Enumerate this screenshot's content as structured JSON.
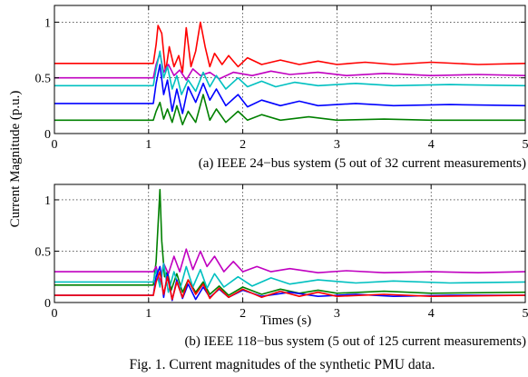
{
  "figure": {
    "ylabel": "Current Magnitude (p.u.)",
    "caption": "Fig. 1.  Current magnitudes of the synthetic PMU data."
  },
  "chart_data": [
    {
      "type": "line",
      "subtitle": "(a) IEEE 24−bus system (5 out of 32 current measurements)",
      "xlabel": "",
      "xlim": [
        0,
        5
      ],
      "ylim": [
        0,
        1.15
      ],
      "xticks": [
        "0",
        "1",
        "2",
        "3",
        "4",
        "5"
      ],
      "yticks": [
        {
          "v": 0,
          "t": "0"
        },
        {
          "v": 0.5,
          "t": "0.5"
        },
        {
          "v": 1,
          "t": "1"
        }
      ],
      "grid": true,
      "series": [
        {
          "color": "#ff0000",
          "points": [
            [
              0,
              0.63
            ],
            [
              1.05,
              0.63
            ],
            [
              1.08,
              0.8
            ],
            [
              1.1,
              0.97
            ],
            [
              1.14,
              0.9
            ],
            [
              1.18,
              0.55
            ],
            [
              1.22,
              0.78
            ],
            [
              1.27,
              0.6
            ],
            [
              1.32,
              0.7
            ],
            [
              1.36,
              0.55
            ],
            [
              1.4,
              0.95
            ],
            [
              1.45,
              0.6
            ],
            [
              1.5,
              0.74
            ],
            [
              1.55,
              1.0
            ],
            [
              1.6,
              0.78
            ],
            [
              1.65,
              0.6
            ],
            [
              1.7,
              0.72
            ],
            [
              1.78,
              0.62
            ],
            [
              1.85,
              0.7
            ],
            [
              1.95,
              0.6
            ],
            [
              2.05,
              0.68
            ],
            [
              2.2,
              0.62
            ],
            [
              2.4,
              0.66
            ],
            [
              2.6,
              0.62
            ],
            [
              2.8,
              0.65
            ],
            [
              3.0,
              0.62
            ],
            [
              3.3,
              0.64
            ],
            [
              3.6,
              0.62
            ],
            [
              4.0,
              0.64
            ],
            [
              4.5,
              0.62
            ],
            [
              5,
              0.63
            ]
          ]
        },
        {
          "color": "#c000c0",
          "points": [
            [
              0,
              0.5
            ],
            [
              1.05,
              0.5
            ],
            [
              1.08,
              0.62
            ],
            [
              1.12,
              0.72
            ],
            [
              1.16,
              0.55
            ],
            [
              1.21,
              0.62
            ],
            [
              1.27,
              0.52
            ],
            [
              1.33,
              0.57
            ],
            [
              1.4,
              0.48
            ],
            [
              1.47,
              0.58
            ],
            [
              1.55,
              0.52
            ],
            [
              1.65,
              0.55
            ],
            [
              1.75,
              0.49
            ],
            [
              1.9,
              0.55
            ],
            [
              2.1,
              0.52
            ],
            [
              2.3,
              0.56
            ],
            [
              2.5,
              0.53
            ],
            [
              2.8,
              0.55
            ],
            [
              3.1,
              0.52
            ],
            [
              3.5,
              0.54
            ],
            [
              4.0,
              0.52
            ],
            [
              4.5,
              0.53
            ],
            [
              5,
              0.52
            ]
          ]
        },
        {
          "color": "#00c0c0",
          "points": [
            [
              0,
              0.43
            ],
            [
              1.05,
              0.43
            ],
            [
              1.08,
              0.58
            ],
            [
              1.12,
              0.74
            ],
            [
              1.16,
              0.5
            ],
            [
              1.2,
              0.6
            ],
            [
              1.25,
              0.4
            ],
            [
              1.3,
              0.52
            ],
            [
              1.35,
              0.35
            ],
            [
              1.42,
              0.48
            ],
            [
              1.5,
              0.38
            ],
            [
              1.58,
              0.55
            ],
            [
              1.65,
              0.42
            ],
            [
              1.72,
              0.52
            ],
            [
              1.82,
              0.4
            ],
            [
              1.95,
              0.5
            ],
            [
              2.05,
              0.42
            ],
            [
              2.2,
              0.47
            ],
            [
              2.35,
              0.42
            ],
            [
              2.55,
              0.46
            ],
            [
              2.8,
              0.43
            ],
            [
              3.2,
              0.45
            ],
            [
              3.6,
              0.43
            ],
            [
              4.2,
              0.44
            ],
            [
              5,
              0.43
            ]
          ]
        },
        {
          "color": "#0000ff",
          "points": [
            [
              0,
              0.27
            ],
            [
              1.05,
              0.27
            ],
            [
              1.08,
              0.45
            ],
            [
              1.12,
              0.62
            ],
            [
              1.16,
              0.35
            ],
            [
              1.2,
              0.48
            ],
            [
              1.25,
              0.2
            ],
            [
              1.3,
              0.4
            ],
            [
              1.36,
              0.18
            ],
            [
              1.42,
              0.42
            ],
            [
              1.5,
              0.28
            ],
            [
              1.58,
              0.45
            ],
            [
              1.65,
              0.3
            ],
            [
              1.72,
              0.4
            ],
            [
              1.82,
              0.25
            ],
            [
              1.95,
              0.35
            ],
            [
              2.05,
              0.24
            ],
            [
              2.2,
              0.3
            ],
            [
              2.4,
              0.25
            ],
            [
              2.6,
              0.29
            ],
            [
              2.8,
              0.25
            ],
            [
              3.2,
              0.27
            ],
            [
              3.6,
              0.25
            ],
            [
              4.2,
              0.26
            ],
            [
              5,
              0.25
            ]
          ]
        },
        {
          "color": "#008000",
          "points": [
            [
              0,
              0.12
            ],
            [
              1.05,
              0.12
            ],
            [
              1.08,
              0.2
            ],
            [
              1.12,
              0.28
            ],
            [
              1.16,
              0.13
            ],
            [
              1.2,
              0.22
            ],
            [
              1.25,
              0.1
            ],
            [
              1.3,
              0.25
            ],
            [
              1.36,
              0.08
            ],
            [
              1.42,
              0.2
            ],
            [
              1.5,
              0.1
            ],
            [
              1.58,
              0.35
            ],
            [
              1.65,
              0.12
            ],
            [
              1.72,
              0.22
            ],
            [
              1.82,
              0.1
            ],
            [
              1.95,
              0.2
            ],
            [
              2.05,
              0.12
            ],
            [
              2.2,
              0.17
            ],
            [
              2.4,
              0.12
            ],
            [
              2.7,
              0.15
            ],
            [
              3.0,
              0.12
            ],
            [
              3.5,
              0.13
            ],
            [
              4.0,
              0.12
            ],
            [
              5,
              0.12
            ]
          ]
        }
      ]
    },
    {
      "type": "line",
      "subtitle": "(b) IEEE 118−bus system (5 out of 125 current measurements)",
      "xlabel": "Times (s)",
      "xlim": [
        0,
        5
      ],
      "ylim": [
        0,
        1.15
      ],
      "xticks": [
        "0",
        "1",
        "2",
        "3",
        "4",
        "5"
      ],
      "yticks": [
        {
          "v": 0,
          "t": "0"
        },
        {
          "v": 0.5,
          "t": "0.5"
        },
        {
          "v": 1,
          "t": "1"
        }
      ],
      "grid": true,
      "series": [
        {
          "color": "#008000",
          "points": [
            [
              0,
              0.17
            ],
            [
              1.05,
              0.17
            ],
            [
              1.08,
              0.4
            ],
            [
              1.1,
              0.75
            ],
            [
              1.12,
              1.1
            ],
            [
              1.14,
              0.6
            ],
            [
              1.17,
              0.25
            ],
            [
              1.2,
              0.3
            ],
            [
              1.24,
              0.12
            ],
            [
              1.3,
              0.28
            ],
            [
              1.36,
              0.1
            ],
            [
              1.42,
              0.22
            ],
            [
              1.5,
              0.1
            ],
            [
              1.58,
              0.2
            ],
            [
              1.65,
              0.08
            ],
            [
              1.75,
              0.16
            ],
            [
              1.85,
              0.07
            ],
            [
              2.0,
              0.15
            ],
            [
              2.2,
              0.08
            ],
            [
              2.4,
              0.13
            ],
            [
              2.6,
              0.09
            ],
            [
              2.8,
              0.12
            ],
            [
              3.0,
              0.09
            ],
            [
              3.5,
              0.11
            ],
            [
              4.0,
              0.09
            ],
            [
              5,
              0.1
            ]
          ]
        },
        {
          "color": "#c000c0",
          "points": [
            [
              0,
              0.3
            ],
            [
              1.05,
              0.3
            ],
            [
              1.08,
              0.35
            ],
            [
              1.12,
              0.2
            ],
            [
              1.16,
              0.38
            ],
            [
              1.21,
              0.28
            ],
            [
              1.27,
              0.45
            ],
            [
              1.33,
              0.3
            ],
            [
              1.4,
              0.52
            ],
            [
              1.47,
              0.32
            ],
            [
              1.55,
              0.5
            ],
            [
              1.62,
              0.35
            ],
            [
              1.7,
              0.45
            ],
            [
              1.8,
              0.3
            ],
            [
              1.9,
              0.4
            ],
            [
              2.0,
              0.3
            ],
            [
              2.15,
              0.35
            ],
            [
              2.3,
              0.3
            ],
            [
              2.5,
              0.33
            ],
            [
              2.8,
              0.29
            ],
            [
              3.1,
              0.31
            ],
            [
              3.5,
              0.29
            ],
            [
              4.0,
              0.3
            ],
            [
              4.5,
              0.29
            ],
            [
              5,
              0.3
            ]
          ]
        },
        {
          "color": "#00c0c0",
          "points": [
            [
              0,
              0.2
            ],
            [
              1.05,
              0.2
            ],
            [
              1.08,
              0.32
            ],
            [
              1.12,
              0.15
            ],
            [
              1.16,
              0.38
            ],
            [
              1.21,
              0.1
            ],
            [
              1.27,
              0.3
            ],
            [
              1.33,
              0.12
            ],
            [
              1.4,
              0.35
            ],
            [
              1.47,
              0.15
            ],
            [
              1.55,
              0.32
            ],
            [
              1.62,
              0.14
            ],
            [
              1.7,
              0.28
            ],
            [
              1.8,
              0.15
            ],
            [
              1.95,
              0.25
            ],
            [
              2.1,
              0.16
            ],
            [
              2.3,
              0.24
            ],
            [
              2.5,
              0.18
            ],
            [
              2.8,
              0.22
            ],
            [
              3.2,
              0.19
            ],
            [
              3.6,
              0.21
            ],
            [
              4.2,
              0.19
            ],
            [
              5,
              0.2
            ]
          ]
        },
        {
          "color": "#0000ff",
          "points": [
            [
              0,
              0.07
            ],
            [
              1.05,
              0.07
            ],
            [
              1.08,
              0.25
            ],
            [
              1.12,
              0.35
            ],
            [
              1.16,
              0.05
            ],
            [
              1.2,
              0.28
            ],
            [
              1.25,
              0.02
            ],
            [
              1.3,
              0.22
            ],
            [
              1.36,
              0.04
            ],
            [
              1.42,
              0.18
            ],
            [
              1.5,
              0.03
            ],
            [
              1.58,
              0.15
            ],
            [
              1.65,
              0.05
            ],
            [
              1.75,
              0.13
            ],
            [
              1.85,
              0.05
            ],
            [
              2.0,
              0.12
            ],
            [
              2.2,
              0.06
            ],
            [
              2.5,
              0.1
            ],
            [
              2.8,
              0.06
            ],
            [
              3.2,
              0.08
            ],
            [
              3.6,
              0.06
            ],
            [
              4.2,
              0.07
            ],
            [
              5,
              0.07
            ]
          ]
        },
        {
          "color": "#ff0000",
          "points": [
            [
              0,
              0.07
            ],
            [
              1.05,
              0.07
            ],
            [
              1.08,
              0.2
            ],
            [
              1.12,
              0.3
            ],
            [
              1.16,
              0.08
            ],
            [
              1.2,
              0.25
            ],
            [
              1.25,
              0.03
            ],
            [
              1.3,
              0.2
            ],
            [
              1.36,
              0.05
            ],
            [
              1.42,
              0.22
            ],
            [
              1.5,
              0.08
            ],
            [
              1.58,
              0.18
            ],
            [
              1.65,
              0.04
            ],
            [
              1.75,
              0.14
            ],
            [
              1.85,
              0.05
            ],
            [
              2.0,
              0.13
            ],
            [
              2.2,
              0.05
            ],
            [
              2.4,
              0.11
            ],
            [
              2.6,
              0.06
            ],
            [
              2.8,
              0.1
            ],
            [
              3.0,
              0.06
            ],
            [
              3.5,
              0.08
            ],
            [
              4.0,
              0.06
            ],
            [
              5,
              0.07
            ]
          ]
        }
      ]
    }
  ]
}
